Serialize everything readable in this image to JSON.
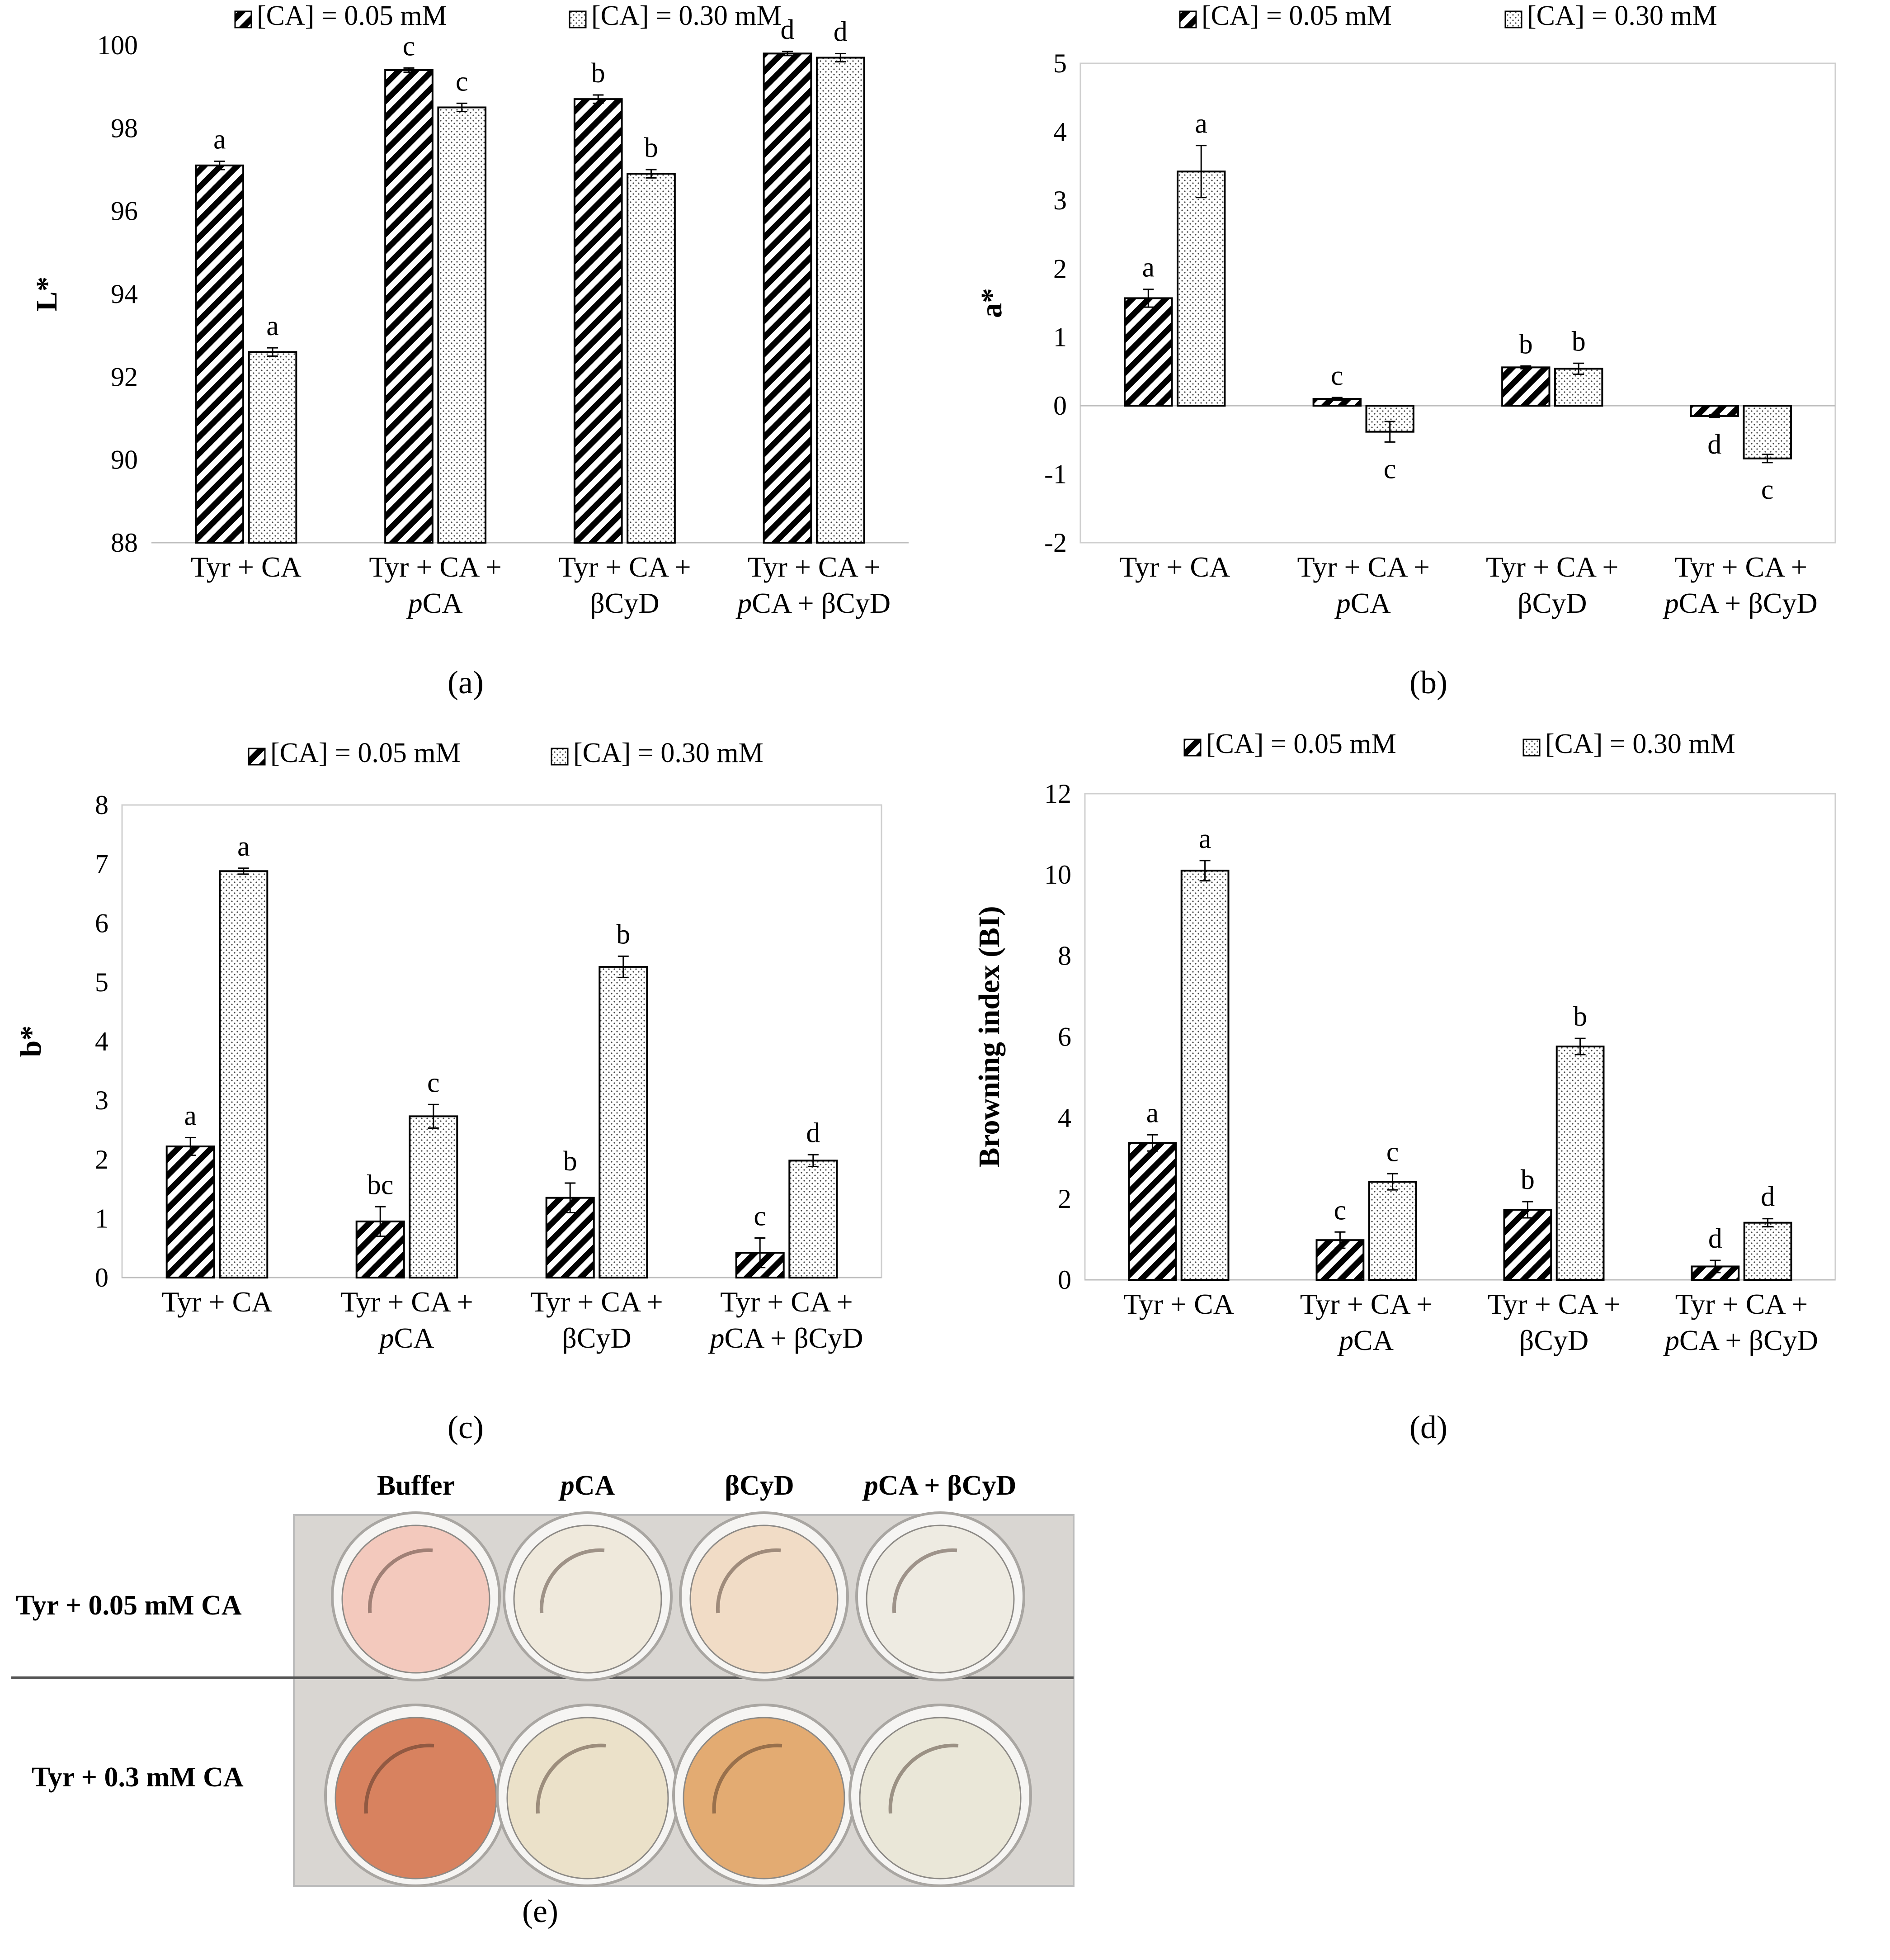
{
  "legend": {
    "series1": "[CA] = 0.05 mM",
    "series2": "[CA] = 0.30 mM"
  },
  "chart_data": [
    {
      "panel": "a",
      "type": "bar",
      "title": "",
      "ylabel": "L*",
      "xlabel": "",
      "ylim": [
        88,
        100
      ],
      "yticks": [
        88,
        90,
        92,
        94,
        96,
        98,
        100
      ],
      "categories": [
        [
          "Tyr + CA"
        ],
        [
          "Tyr + CA +",
          "pCA"
        ],
        [
          "Tyr + CA +",
          "βCyD"
        ],
        [
          "Tyr + CA +",
          "pCA + βCyD"
        ]
      ],
      "series": [
        {
          "name": "[CA] = 0.05 mM",
          "values": [
            97.1,
            99.4,
            98.7,
            99.8
          ],
          "errors": [
            0.1,
            0.05,
            0.1,
            0.05
          ],
          "letters": [
            "a",
            "c",
            "b",
            "d"
          ]
        },
        {
          "name": "[CA] = 0.30 mM",
          "values": [
            92.6,
            98.5,
            96.9,
            99.7
          ],
          "errors": [
            0.1,
            0.1,
            0.1,
            0.1
          ],
          "letters": [
            "a",
            "c",
            "b",
            "d"
          ]
        }
      ]
    },
    {
      "panel": "b",
      "type": "bar",
      "title": "",
      "ylabel": "a*",
      "xlabel": "",
      "ylim": [
        -2,
        5
      ],
      "yticks": [
        -2,
        -1,
        0,
        1,
        2,
        3,
        4,
        5
      ],
      "categories": [
        [
          "Tyr + CA"
        ],
        [
          "Tyr + CA +",
          "pCA"
        ],
        [
          "Tyr + CA +",
          "βCyD"
        ],
        [
          "Tyr + CA +",
          "pCA + βCyD"
        ]
      ],
      "series": [
        {
          "name": "[CA] = 0.05 mM",
          "values": [
            1.57,
            0.1,
            0.56,
            -0.15
          ],
          "errors": [
            0.13,
            0.02,
            0.02,
            0.02
          ],
          "letters": [
            "a",
            "c",
            "b",
            "d"
          ]
        },
        {
          "name": "[CA] = 0.30 mM",
          "values": [
            3.42,
            -0.38,
            0.54,
            -0.77
          ],
          "errors": [
            0.38,
            0.15,
            0.08,
            0.06
          ],
          "letters": [
            "a",
            "c",
            "b",
            "c"
          ]
        }
      ]
    },
    {
      "panel": "c",
      "type": "bar",
      "title": "",
      "ylabel": "b*",
      "xlabel": "",
      "ylim": [
        0,
        8
      ],
      "yticks": [
        0,
        1,
        2,
        3,
        4,
        5,
        6,
        7,
        8
      ],
      "categories": [
        [
          "Tyr + CA"
        ],
        [
          "Tyr + CA +",
          "pCA"
        ],
        [
          "Tyr + CA +",
          "βCyD"
        ],
        [
          "Tyr + CA +",
          "pCA + βCyD"
        ]
      ],
      "series": [
        {
          "name": "[CA] = 0.05 mM",
          "values": [
            2.22,
            0.95,
            1.35,
            0.42
          ],
          "errors": [
            0.15,
            0.25,
            0.25,
            0.25
          ],
          "letters": [
            "a",
            "bc",
            "b",
            "c"
          ]
        },
        {
          "name": "[CA] = 0.30 mM",
          "values": [
            6.88,
            2.73,
            5.26,
            1.98
          ],
          "errors": [
            0.05,
            0.2,
            0.18,
            0.1
          ],
          "letters": [
            "a",
            "c",
            "b",
            "d"
          ]
        }
      ]
    },
    {
      "panel": "d",
      "type": "bar",
      "title": "",
      "ylabel": "Browning index (BI)",
      "xlabel": "",
      "ylim": [
        0,
        12
      ],
      "yticks": [
        0,
        2,
        4,
        6,
        8,
        10,
        12
      ],
      "categories": [
        [
          "Tyr + CA"
        ],
        [
          "Tyr + CA +",
          "pCA"
        ],
        [
          "Tyr + CA +",
          "βCyD"
        ],
        [
          "Tyr + CA +",
          "pCA + βCyD"
        ]
      ],
      "series": [
        {
          "name": "[CA] = 0.05 mM",
          "values": [
            3.38,
            0.98,
            1.73,
            0.33
          ],
          "errors": [
            0.2,
            0.2,
            0.2,
            0.15
          ],
          "letters": [
            "a",
            "c",
            "b",
            "d"
          ]
        },
        {
          "name": "[CA] = 0.30 mM",
          "values": [
            10.1,
            2.42,
            5.76,
            1.41
          ],
          "errors": [
            0.25,
            0.2,
            0.2,
            0.1
          ],
          "letters": [
            "a",
            "c",
            "b",
            "d"
          ]
        }
      ]
    }
  ],
  "captions": {
    "a": "(a)",
    "b": "(b)",
    "c": "(c)",
    "d": "(d)",
    "e": "(e)"
  },
  "photo": {
    "columns": [
      "Buffer",
      "pCA",
      "βCyD",
      "pCA + βCyD"
    ],
    "rows": [
      "Tyr + 0.05 mM CA",
      "Tyr + 0.3 mM CA"
    ],
    "well_colors_top": [
      "#f3c9bd",
      "#efe9dc",
      "#f1dcc6",
      "#eeebe2"
    ],
    "well_colors_bottom": [
      "#d8825f",
      "#ebe1c9",
      "#e3ab72",
      "#eae7d8"
    ],
    "plate_color": "#d9d6d2"
  }
}
